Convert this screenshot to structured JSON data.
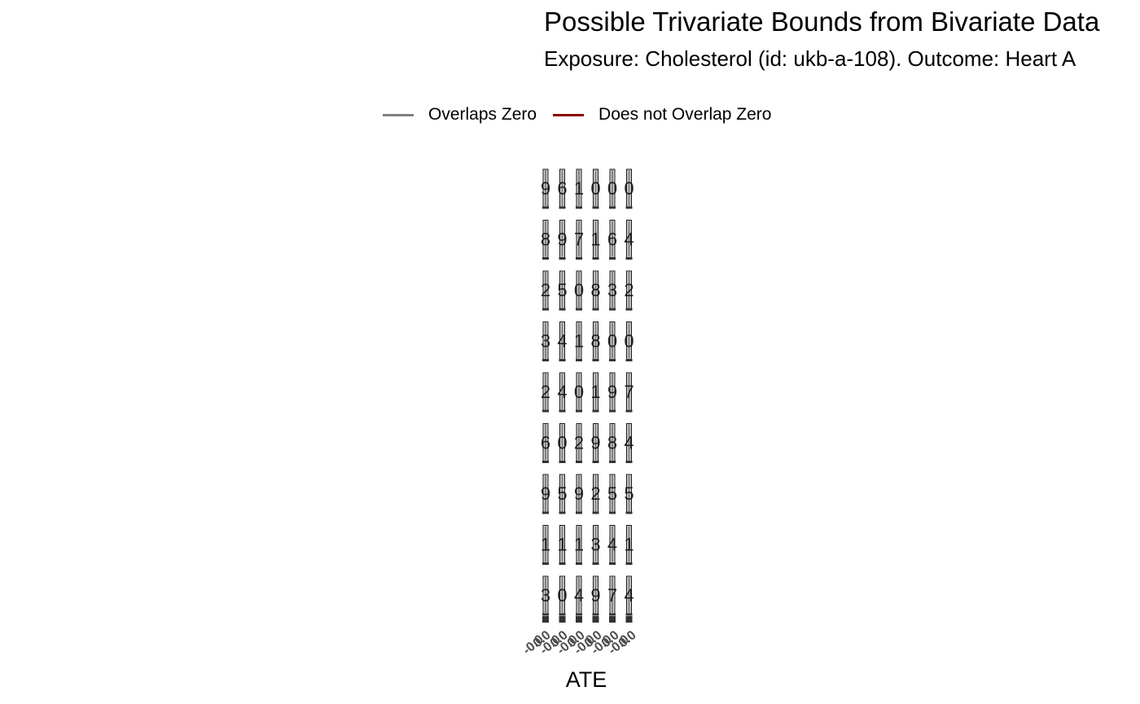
{
  "chart_data": {
    "type": "bar",
    "title": "Possible Trivariate Bounds from Bivariate Data",
    "subtitle": "Exposure: Cholesterol (id: ukb-a-108). Outcome: Heart A",
    "xlabel": "ATE",
    "legend": {
      "placement": "top",
      "entries": [
        {
          "label": "Overlaps Zero",
          "color": "#808080"
        },
        {
          "label": "Does not Overlap Zero",
          "color": "#8b0000"
        }
      ]
    },
    "facets": {
      "rows": 9,
      "cols": 6
    },
    "panel_digits": [
      [
        "9",
        "6",
        "1",
        "0",
        "0",
        "0"
      ],
      [
        "8",
        "9",
        "7",
        "1",
        "6",
        "4"
      ],
      [
        "2",
        "5",
        "0",
        "8",
        "3",
        "2"
      ],
      [
        "3",
        "4",
        "1",
        "8",
        "0",
        "0"
      ],
      [
        "2",
        "4",
        "0",
        "1",
        "9",
        "7"
      ],
      [
        "6",
        "0",
        "2",
        "9",
        "8",
        "4"
      ],
      [
        "9",
        "5",
        "9",
        "2",
        "5",
        "5"
      ],
      [
        "1",
        "1",
        "1",
        "3",
        "4",
        "1"
      ],
      [
        "3",
        "0",
        "4",
        "9",
        "7",
        "4"
      ]
    ],
    "x_ticks": [
      "-0.0",
      "0.0",
      "-0.0",
      "0.0",
      "-0.0",
      "0.0",
      "-0.0",
      "0.0",
      "-0.0",
      "0.0",
      "-0.0",
      "0.0"
    ]
  }
}
